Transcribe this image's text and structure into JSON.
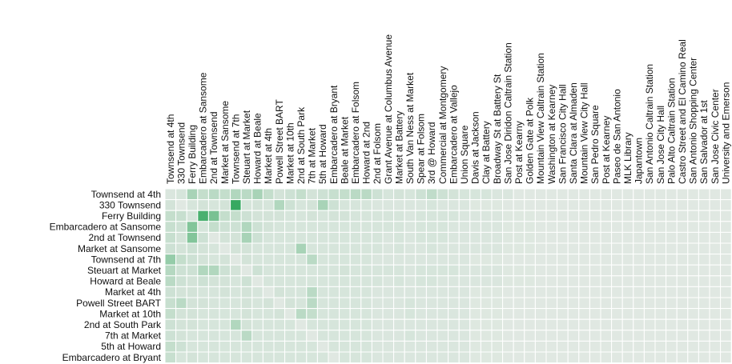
{
  "chart_data": {
    "type": "heatmap",
    "title": "",
    "xlabel": "",
    "ylabel": "",
    "base_color": "#e9ece9",
    "accent_color": "#2ea55a",
    "columns": [
      "Townsend at 4th",
      "330 Townsend",
      "Ferry Building",
      "Embarcadero at Sansome",
      "2nd at Townsend",
      "Market at Sansome",
      "Townsend at 7th",
      "Steuart at Market",
      "Howard at Beale",
      "Market at 4th",
      "Powell Street BART",
      "Market at 10th",
      "2nd at South Park",
      "7th at Market",
      "5th at Howard",
      "Embarcadero at Bryant",
      "Beale at Market",
      "Embarcadero at Folsom",
      "Howard at 2nd",
      "2nd at Folsom",
      "Grant Avenue at Columbus Avenue",
      "Market at Battery",
      "South Van Ness at Market",
      "Spear at Folsom",
      "3rd @ Howard",
      "Commercial at Montgomery",
      "Embarcadero at Vallejo",
      "Union Square",
      "Davis at Jackson",
      "Clay at Battery",
      "Broadway St at Battery St",
      "San Jose Diridon Caltrain Station",
      "Post at Kearny",
      "Golden Gate at Polk",
      "Mountain View Caltrain Station",
      "Washington at Kearney",
      "San Francisco City Hall",
      "Santa Clara at Almaden",
      "Mountain View City Hall",
      "San Pedro Square",
      "Post at Kearney",
      "Paseo de San Antonio",
      "MLK Library",
      "Japantown",
      "San Antonio Caltrain Station",
      "San Jose City Hall",
      "Palo Alto Caltrain Station",
      "Castro Street and El Camino Real",
      "San Antonio Shopping Center",
      "San Salvador at 1st",
      "San Jose Civic Center",
      "University and Emerson"
    ],
    "rows": [
      "Townsend at 4th",
      "330 Townsend",
      "Ferry Building",
      "Embarcadero at Sansome",
      "2nd at Townsend",
      "Market at Sansome",
      "Townsend at 7th",
      "Steuart at Market",
      "Howard at Beale",
      "Market at 4th",
      "Powell Street BART",
      "Market at 10th",
      "2nd at South Park",
      "7th at Market",
      "5th at Howard",
      "Embarcadero at Bryant"
    ],
    "values": [
      [
        0.08,
        0.1,
        0.35,
        0.2,
        0.25,
        0.2,
        0.3,
        0.25,
        0.35,
        0.2,
        0.12,
        0.15,
        0.2,
        0.12,
        0.15,
        0.18,
        0.2,
        0.25,
        0.25,
        0.15,
        0.1,
        0.12,
        0.1,
        0.15,
        0.22,
        0.15,
        0.12,
        0.1,
        0.1,
        0.1,
        0.08,
        0.08,
        0.05,
        0.05,
        0.05,
        0.05,
        0.05,
        0.05,
        0.05,
        0.05,
        0.05,
        0.05,
        0.05,
        0.05,
        0.05,
        0.05,
        0.05,
        0.05,
        0.05,
        0.05,
        0.05,
        0.05
      ],
      [
        0.12,
        0.05,
        0.1,
        0.12,
        0.1,
        0.12,
        0.95,
        0.1,
        0.12,
        0.1,
        0.3,
        0.15,
        0.1,
        0.12,
        0.35,
        0.15,
        0.1,
        0.1,
        0.1,
        0.08,
        0.08,
        0.08,
        0.08,
        0.08,
        0.1,
        0.08,
        0.08,
        0.08,
        0.06,
        0.06,
        0.06,
        0.05,
        0.05,
        0.05,
        0.05,
        0.05,
        0.05,
        0.05,
        0.05,
        0.05,
        0.05,
        0.05,
        0.05,
        0.05,
        0.05,
        0.05,
        0.05,
        0.05,
        0.05,
        0.05,
        0.05,
        0.05
      ],
      [
        0.2,
        0.18,
        0.1,
        0.85,
        0.6,
        0.2,
        0.2,
        0.15,
        0.12,
        0.12,
        0.12,
        0.1,
        0.1,
        0.12,
        0.1,
        0.12,
        0.12,
        0.1,
        0.1,
        0.1,
        0.1,
        0.1,
        0.08,
        0.1,
        0.1,
        0.1,
        0.1,
        0.08,
        0.08,
        0.08,
        0.08,
        0.06,
        0.06,
        0.06,
        0.05,
        0.05,
        0.05,
        0.05,
        0.05,
        0.05,
        0.05,
        0.05,
        0.05,
        0.05,
        0.05,
        0.05,
        0.05,
        0.05,
        0.05,
        0.05,
        0.05,
        0.05
      ],
      [
        0.18,
        0.15,
        0.55,
        0.1,
        0.2,
        0.15,
        0.15,
        0.3,
        0.15,
        0.12,
        0.1,
        0.1,
        0.1,
        0.1,
        0.1,
        0.1,
        0.1,
        0.1,
        0.1,
        0.1,
        0.1,
        0.1,
        0.08,
        0.1,
        0.1,
        0.1,
        0.08,
        0.08,
        0.08,
        0.08,
        0.08,
        0.06,
        0.06,
        0.06,
        0.05,
        0.05,
        0.05,
        0.05,
        0.05,
        0.05,
        0.05,
        0.05,
        0.05,
        0.05,
        0.05,
        0.05,
        0.05,
        0.05,
        0.05,
        0.05,
        0.05,
        0.05
      ],
      [
        0.18,
        0.12,
        0.55,
        0.15,
        0.05,
        0.12,
        0.12,
        0.35,
        0.15,
        0.1,
        0.1,
        0.1,
        0.1,
        0.1,
        0.1,
        0.1,
        0.1,
        0.1,
        0.1,
        0.1,
        0.08,
        0.1,
        0.08,
        0.1,
        0.1,
        0.1,
        0.08,
        0.08,
        0.08,
        0.08,
        0.08,
        0.06,
        0.06,
        0.06,
        0.05,
        0.05,
        0.05,
        0.05,
        0.05,
        0.05,
        0.05,
        0.05,
        0.05,
        0.05,
        0.05,
        0.05,
        0.05,
        0.05,
        0.05,
        0.05,
        0.05,
        0.05
      ],
      [
        0.15,
        0.12,
        0.15,
        0.12,
        0.1,
        0.05,
        0.12,
        0.12,
        0.1,
        0.1,
        0.1,
        0.1,
        0.35,
        0.1,
        0.1,
        0.1,
        0.1,
        0.1,
        0.1,
        0.1,
        0.08,
        0.1,
        0.08,
        0.08,
        0.1,
        0.08,
        0.08,
        0.08,
        0.08,
        0.08,
        0.08,
        0.06,
        0.06,
        0.06,
        0.05,
        0.05,
        0.05,
        0.05,
        0.05,
        0.05,
        0.05,
        0.05,
        0.05,
        0.05,
        0.05,
        0.05,
        0.05,
        0.05,
        0.05,
        0.05,
        0.05,
        0.05
      ],
      [
        0.45,
        0.2,
        0.15,
        0.12,
        0.1,
        0.12,
        0.05,
        0.12,
        0.1,
        0.1,
        0.1,
        0.1,
        0.1,
        0.25,
        0.1,
        0.1,
        0.1,
        0.1,
        0.1,
        0.08,
        0.08,
        0.08,
        0.08,
        0.08,
        0.08,
        0.08,
        0.08,
        0.08,
        0.06,
        0.06,
        0.06,
        0.05,
        0.05,
        0.05,
        0.05,
        0.05,
        0.05,
        0.05,
        0.05,
        0.05,
        0.05,
        0.05,
        0.05,
        0.05,
        0.05,
        0.05,
        0.05,
        0.05,
        0.05,
        0.05,
        0.05,
        0.05
      ],
      [
        0.28,
        0.15,
        0.15,
        0.3,
        0.3,
        0.15,
        0.12,
        0.05,
        0.15,
        0.1,
        0.1,
        0.1,
        0.1,
        0.1,
        0.1,
        0.1,
        0.12,
        0.1,
        0.1,
        0.1,
        0.1,
        0.1,
        0.08,
        0.1,
        0.1,
        0.1,
        0.1,
        0.08,
        0.08,
        0.08,
        0.08,
        0.06,
        0.06,
        0.06,
        0.05,
        0.05,
        0.05,
        0.05,
        0.05,
        0.05,
        0.05,
        0.05,
        0.05,
        0.05,
        0.05,
        0.05,
        0.05,
        0.05,
        0.05,
        0.05,
        0.05,
        0.05
      ],
      [
        0.25,
        0.15,
        0.12,
        0.15,
        0.12,
        0.12,
        0.1,
        0.15,
        0.05,
        0.1,
        0.1,
        0.1,
        0.1,
        0.1,
        0.1,
        0.1,
        0.1,
        0.1,
        0.1,
        0.1,
        0.08,
        0.1,
        0.08,
        0.1,
        0.1,
        0.08,
        0.08,
        0.08,
        0.08,
        0.08,
        0.08,
        0.06,
        0.06,
        0.06,
        0.05,
        0.05,
        0.05,
        0.05,
        0.05,
        0.05,
        0.05,
        0.05,
        0.05,
        0.05,
        0.05,
        0.05,
        0.05,
        0.05,
        0.05,
        0.05,
        0.05,
        0.05
      ],
      [
        0.15,
        0.12,
        0.12,
        0.1,
        0.1,
        0.12,
        0.1,
        0.12,
        0.1,
        0.05,
        0.12,
        0.1,
        0.1,
        0.25,
        0.1,
        0.1,
        0.1,
        0.1,
        0.1,
        0.08,
        0.08,
        0.08,
        0.08,
        0.08,
        0.08,
        0.08,
        0.08,
        0.08,
        0.06,
        0.06,
        0.06,
        0.05,
        0.05,
        0.05,
        0.05,
        0.05,
        0.05,
        0.05,
        0.05,
        0.05,
        0.05,
        0.05,
        0.05,
        0.05,
        0.05,
        0.05,
        0.05,
        0.05,
        0.05,
        0.05,
        0.05,
        0.05
      ],
      [
        0.18,
        0.25,
        0.12,
        0.12,
        0.1,
        0.1,
        0.1,
        0.12,
        0.1,
        0.12,
        0.05,
        0.12,
        0.1,
        0.25,
        0.1,
        0.1,
        0.1,
        0.1,
        0.1,
        0.08,
        0.08,
        0.08,
        0.1,
        0.08,
        0.08,
        0.08,
        0.08,
        0.08,
        0.06,
        0.06,
        0.06,
        0.05,
        0.05,
        0.05,
        0.05,
        0.05,
        0.05,
        0.05,
        0.05,
        0.05,
        0.05,
        0.05,
        0.05,
        0.05,
        0.05,
        0.05,
        0.05,
        0.05,
        0.05,
        0.05,
        0.05,
        0.05
      ],
      [
        0.2,
        0.12,
        0.12,
        0.1,
        0.1,
        0.1,
        0.1,
        0.12,
        0.1,
        0.1,
        0.12,
        0.05,
        0.25,
        0.2,
        0.1,
        0.1,
        0.1,
        0.1,
        0.1,
        0.08,
        0.08,
        0.08,
        0.1,
        0.08,
        0.08,
        0.08,
        0.08,
        0.08,
        0.06,
        0.06,
        0.06,
        0.05,
        0.05,
        0.05,
        0.05,
        0.05,
        0.05,
        0.05,
        0.05,
        0.05,
        0.05,
        0.05,
        0.05,
        0.05,
        0.05,
        0.05,
        0.05,
        0.05,
        0.05,
        0.05,
        0.05,
        0.05
      ],
      [
        0.15,
        0.12,
        0.12,
        0.1,
        0.1,
        0.1,
        0.3,
        0.12,
        0.1,
        0.1,
        0.1,
        0.1,
        0.05,
        0.1,
        0.1,
        0.1,
        0.1,
        0.1,
        0.1,
        0.08,
        0.08,
        0.08,
        0.08,
        0.08,
        0.08,
        0.08,
        0.08,
        0.08,
        0.06,
        0.06,
        0.06,
        0.05,
        0.05,
        0.05,
        0.05,
        0.05,
        0.05,
        0.05,
        0.05,
        0.05,
        0.05,
        0.05,
        0.05,
        0.05,
        0.05,
        0.05,
        0.05,
        0.05,
        0.05,
        0.05,
        0.05,
        0.05
      ],
      [
        0.15,
        0.12,
        0.1,
        0.1,
        0.1,
        0.1,
        0.1,
        0.25,
        0.1,
        0.1,
        0.1,
        0.1,
        0.1,
        0.05,
        0.1,
        0.1,
        0.1,
        0.1,
        0.1,
        0.08,
        0.08,
        0.08,
        0.1,
        0.08,
        0.08,
        0.08,
        0.08,
        0.08,
        0.06,
        0.06,
        0.06,
        0.05,
        0.05,
        0.05,
        0.05,
        0.05,
        0.05,
        0.05,
        0.05,
        0.05,
        0.05,
        0.05,
        0.05,
        0.05,
        0.05,
        0.05,
        0.05,
        0.05,
        0.05,
        0.05,
        0.05,
        0.05
      ],
      [
        0.2,
        0.15,
        0.1,
        0.1,
        0.1,
        0.1,
        0.1,
        0.1,
        0.1,
        0.1,
        0.1,
        0.1,
        0.1,
        0.1,
        0.05,
        0.1,
        0.1,
        0.1,
        0.1,
        0.08,
        0.08,
        0.08,
        0.08,
        0.08,
        0.08,
        0.08,
        0.08,
        0.08,
        0.06,
        0.06,
        0.06,
        0.05,
        0.05,
        0.05,
        0.05,
        0.05,
        0.05,
        0.05,
        0.05,
        0.05,
        0.05,
        0.05,
        0.05,
        0.05,
        0.05,
        0.05,
        0.05,
        0.05,
        0.05,
        0.05,
        0.05,
        0.05
      ],
      [
        0.18,
        0.1,
        0.12,
        0.1,
        0.1,
        0.1,
        0.1,
        0.1,
        0.1,
        0.1,
        0.1,
        0.1,
        0.1,
        0.1,
        0.1,
        0.05,
        0.1,
        0.1,
        0.1,
        0.08,
        0.08,
        0.08,
        0.08,
        0.08,
        0.08,
        0.08,
        0.08,
        0.08,
        0.06,
        0.06,
        0.06,
        0.05,
        0.05,
        0.05,
        0.05,
        0.05,
        0.05,
        0.05,
        0.05,
        0.05,
        0.05,
        0.05,
        0.05,
        0.05,
        0.05,
        0.05,
        0.05,
        0.05,
        0.05,
        0.05,
        0.05,
        0.05
      ]
    ],
    "value_range": [
      0,
      1
    ],
    "grid": true,
    "legend": "none"
  }
}
